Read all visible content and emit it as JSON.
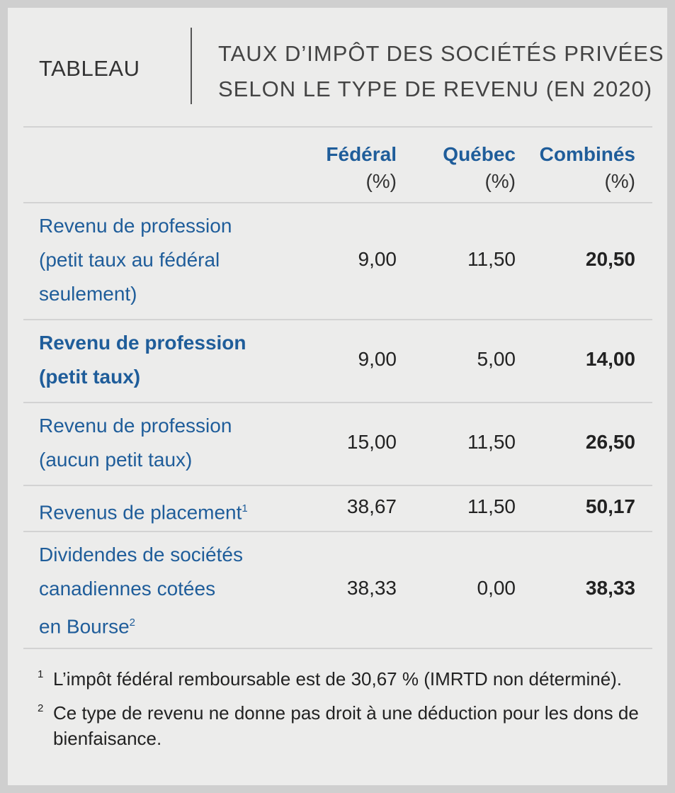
{
  "header": {
    "label": "TABLEAU",
    "title": [
      "TAUX D’IMPÔT DES SOCIÉTÉS PRIVÉES",
      "SELON LE TYPE DE REVENU (EN 2020)"
    ]
  },
  "table": {
    "columns": [
      [
        "Fédéral",
        "(%)"
      ],
      [
        "Québec",
        "(%)"
      ],
      [
        "Combinés",
        "(%)"
      ]
    ],
    "rows": [
      {
        "label": [
          "Revenu de profession",
          "(petit taux au fédéral",
          "seulement)"
        ],
        "values": [
          "9,00",
          "11,50",
          "20,50"
        ]
      },
      {
        "label": [
          "Revenu de profession",
          "(petit taux)"
        ],
        "emphasis": true,
        "values": [
          "9,00",
          "5,00",
          "14,00"
        ]
      },
      {
        "label": [
          "Revenu de profession",
          "(aucun petit taux)"
        ],
        "values": [
          "15,00",
          "11,50",
          "26,50"
        ]
      },
      {
        "label": [
          "Revenus de placement"
        ],
        "note": "1",
        "values": [
          "38,67",
          "11,50",
          "50,17"
        ]
      },
      {
        "label": [
          "Dividendes de sociétés",
          "canadiennes cotées",
          "en Bourse"
        ],
        "note": "2",
        "values": [
          "38,33",
          "0,00",
          "38,33"
        ]
      }
    ]
  },
  "footnotes": [
    {
      "marker": "1",
      "text": "L’impôt fédéral remboursable est de 30,67 % (IMRTD non déterminé)."
    },
    {
      "marker": "2",
      "text": "Ce type de revenu ne donne pas droit à une déduction pour les dons de bienfaisance."
    }
  ]
}
